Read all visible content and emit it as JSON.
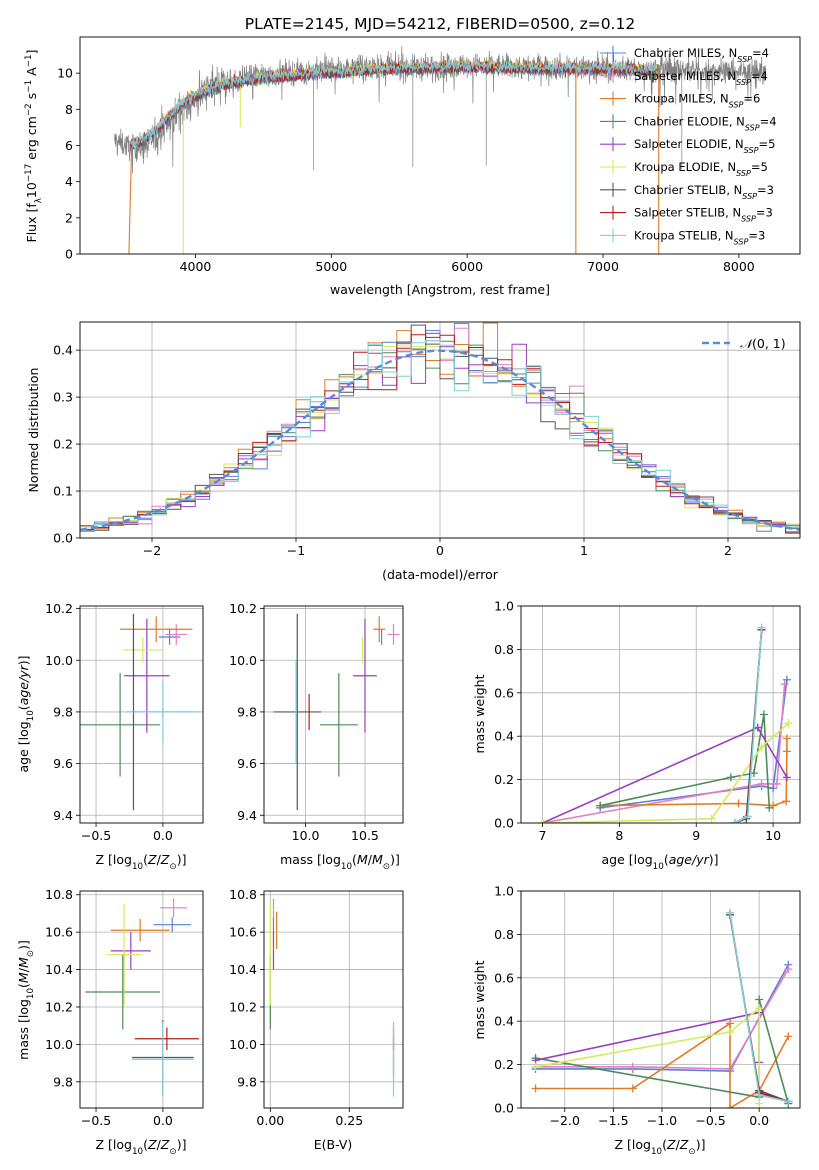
{
  "figure": {
    "title": "PLATE=2145, MJD=54212, FIBERID=0500, z=0.12",
    "colors": {
      "Chabrier MILES": "#5b7fd8",
      "Salpeter MILES": "#e57fbf",
      "Kroupa MILES": "#e07b2a",
      "Chabrier ELODIE": "#4f8a5a",
      "Salpeter ELODIE": "#9a3fbf",
      "Kroupa ELODIE": "#d4ea5a",
      "Chabrier STELIB": "#555555",
      "Salpeter STELIB": "#b81c1c",
      "Kroupa STELIB": "#7fcfdc",
      "grid": "#b0b0b0"
    }
  },
  "chart_data": [
    {
      "id": "spectrum",
      "type": "line",
      "xlabel": "wavelength [Angstrom, rest frame]",
      "ylabel": "Flux [f_λ10^-17 erg cm^-2 s^-1 A^-1]",
      "xlim": [
        3150,
        8450
      ],
      "ylim": [
        0,
        12
      ],
      "xticks": [
        4000,
        5000,
        6000,
        7000,
        8000
      ],
      "yticks": [
        0,
        2,
        4,
        6,
        8,
        10
      ],
      "grid": false,
      "legend_position": "right",
      "data_continuum": [
        [
          3400,
          6.3
        ],
        [
          3550,
          5.8
        ],
        [
          3650,
          6.0
        ],
        [
          3750,
          6.9
        ],
        [
          3850,
          7.6
        ],
        [
          3950,
          8.3
        ],
        [
          4100,
          9.1
        ],
        [
          4300,
          9.6
        ],
        [
          4500,
          9.9
        ],
        [
          4800,
          10.1
        ],
        [
          5200,
          10.3
        ],
        [
          5600,
          10.3
        ],
        [
          6000,
          10.4
        ],
        [
          6500,
          10.35
        ],
        [
          7000,
          10.3
        ],
        [
          7500,
          10.2
        ],
        [
          8000,
          10.1
        ],
        [
          8200,
          10.0
        ]
      ],
      "model_rise": [
        [
          3520,
          6.0
        ],
        [
          3600,
          6.2
        ],
        [
          3700,
          6.7
        ],
        [
          3800,
          7.5
        ],
        [
          3900,
          8.2
        ],
        [
          4000,
          8.7
        ],
        [
          4200,
          9.3
        ],
        [
          4500,
          9.7
        ],
        [
          5000,
          10.0
        ],
        [
          5500,
          10.2
        ],
        [
          6000,
          10.3
        ],
        [
          6500,
          10.2
        ],
        [
          7000,
          10.2
        ],
        [
          7400,
          10.1
        ]
      ],
      "series": [
        {
          "name": "Chabrier MILES",
          "n_ssp": "4"
        },
        {
          "name": "Salpeter MILES",
          "n_ssp": "4"
        },
        {
          "name": "Kroupa MILES",
          "n_ssp": "6"
        },
        {
          "name": "Chabrier ELODIE",
          "n_ssp": "4"
        },
        {
          "name": "Salpeter ELODIE",
          "n_ssp": "5"
        },
        {
          "name": "Kroupa ELODIE",
          "n_ssp": "5"
        },
        {
          "name": "Chabrier STELIB",
          "n_ssp": "3"
        },
        {
          "name": "Salpeter STELIB",
          "n_ssp": "3"
        },
        {
          "name": "Kroupa STELIB",
          "n_ssp": "3"
        }
      ]
    },
    {
      "id": "residual-histogram",
      "type": "line",
      "xlabel": "(data-model)/error",
      "ylabel": "Normed distribution",
      "xlim": [
        -2.5,
        2.5
      ],
      "ylim": [
        0,
        0.46
      ],
      "xticks": [
        -2,
        -1,
        0,
        1,
        2
      ],
      "yticks": [
        0.0,
        0.1,
        0.2,
        0.3,
        0.4
      ],
      "grid": true,
      "legend_label": "N(0,1)",
      "legend_position": "top-right",
      "bin_width": 0.1,
      "bin_start": -2.5
    },
    {
      "id": "age-vs-Z",
      "type": "scatter",
      "xlabel": "Z [log10(Z/Z⊙)]",
      "ylabel": "age [log10(age/yr)]",
      "xlim": [
        -0.62,
        0.3
      ],
      "ylim": [
        9.37,
        10.21
      ],
      "xticks": [
        -0.5,
        0.0
      ],
      "yticks": [
        9.4,
        9.6,
        9.8,
        10.0,
        10.2
      ],
      "grid": true,
      "points": [
        {
          "series": "Chabrier MILES",
          "x": 0.05,
          "xerr": 0.08,
          "y": 10.09,
          "yerr": 0.03
        },
        {
          "series": "Salpeter MILES",
          "x": 0.1,
          "xerr": 0.08,
          "y": 10.1,
          "yerr": 0.04
        },
        {
          "series": "Kroupa MILES",
          "x": -0.05,
          "xerr": 0.27,
          "y": 10.12,
          "yerr": 0.05
        },
        {
          "series": "Chabrier ELODIE",
          "x": -0.32,
          "xerr": 0.3,
          "y": 9.75,
          "yerr": 0.2
        },
        {
          "series": "Salpeter ELODIE",
          "x": -0.12,
          "xerr": 0.17,
          "y": 9.94,
          "yerr": 0.22
        },
        {
          "series": "Kroupa ELODIE",
          "x": -0.15,
          "xerr": 0.15,
          "y": 10.04,
          "yerr": 0.05
        },
        {
          "series": "Chabrier STELIB",
          "x": -0.22,
          "xerr": 0.01,
          "y": 9.8,
          "yerr": 0.38
        },
        {
          "series": "Salpeter STELIB",
          "x": 0.0,
          "xerr": 0.27,
          "y": 9.8,
          "yerr": 0.01
        },
        {
          "series": "Kroupa STELIB",
          "x": 0.0,
          "xerr": 0.28,
          "y": 9.8,
          "yerr": 0.12
        }
      ]
    },
    {
      "id": "age-vs-mass",
      "type": "scatter",
      "xlabel": "mass [log10(M/M⊙)]",
      "ylabel": "",
      "xlim": [
        9.65,
        10.82
      ],
      "ylim": [
        9.37,
        10.21
      ],
      "xticks": [
        10.0,
        10.5
      ],
      "yticks": [
        9.4,
        9.6,
        9.8,
        10.0,
        10.2
      ],
      "grid": true,
      "points": [
        {
          "series": "Chabrier MILES",
          "x": 10.64,
          "xerr": 0.0,
          "y": 10.09,
          "yerr": 0.03
        },
        {
          "series": "Salpeter MILES",
          "x": 10.74,
          "xerr": 0.05,
          "y": 10.1,
          "yerr": 0.04
        },
        {
          "series": "Kroupa MILES",
          "x": 10.62,
          "xerr": 0.05,
          "y": 10.12,
          "yerr": 0.05
        },
        {
          "series": "Chabrier ELODIE",
          "x": 10.28,
          "xerr": 0.16,
          "y": 9.75,
          "yerr": 0.2
        },
        {
          "series": "Salpeter ELODIE",
          "x": 10.5,
          "xerr": 0.1,
          "y": 9.94,
          "yerr": 0.22
        },
        {
          "series": "Kroupa ELODIE",
          "x": 10.48,
          "xerr": 0.0,
          "y": 10.04,
          "yerr": 0.05
        },
        {
          "series": "Chabrier STELIB",
          "x": 9.93,
          "xerr": 0.2,
          "y": 9.8,
          "yerr": 0.38
        },
        {
          "series": "Salpeter STELIB",
          "x": 10.03,
          "xerr": 0.0,
          "y": 9.8,
          "yerr": 0.07
        },
        {
          "series": "Kroupa STELIB",
          "x": 9.92,
          "xerr": 0.0,
          "y": 9.8,
          "yerr": 0.2
        }
      ]
    },
    {
      "id": "weight-vs-age",
      "type": "line",
      "xlabel": "age [log10(age/yr)]",
      "ylabel": "mass weight",
      "xlim": [
        6.72,
        10.35
      ],
      "ylim": [
        0,
        1.0
      ],
      "xticks": [
        7,
        8,
        9,
        10
      ],
      "yticks": [
        0.0,
        0.2,
        0.4,
        0.6,
        0.8,
        1.0
      ],
      "grid": true,
      "series": [
        {
          "name": "Chabrier MILES",
          "points": [
            [
              7.75,
              0.07
            ],
            [
              9.85,
              0.17
            ],
            [
              10.0,
              0.16
            ],
            [
              10.18,
              0.66
            ]
          ]
        },
        {
          "name": "Salpeter MILES",
          "points": [
            [
              7.0,
              0.0
            ],
            [
              9.85,
              0.18
            ],
            [
              10.05,
              0.18
            ],
            [
              10.15,
              0.64
            ]
          ]
        },
        {
          "name": "Kroupa MILES",
          "points": [
            [
              7.75,
              0.08
            ],
            [
              9.55,
              0.09
            ],
            [
              10.0,
              0.08
            ],
            [
              10.17,
              0.1
            ],
            [
              10.18,
              0.33
            ],
            [
              10.18,
              0.39
            ]
          ]
        },
        {
          "name": "Chabrier ELODIE",
          "points": [
            [
              7.75,
              0.08
            ],
            [
              9.45,
              0.21
            ],
            [
              9.75,
              0.23
            ],
            [
              9.88,
              0.5
            ],
            [
              9.95,
              0.07
            ]
          ]
        },
        {
          "name": "Salpeter ELODIE",
          "points": [
            [
              7.0,
              0.0
            ],
            [
              9.8,
              0.44
            ],
            [
              10.18,
              0.21
            ]
          ]
        },
        {
          "name": "Kroupa ELODIE",
          "points": [
            [
              7.0,
              0.0
            ],
            [
              9.2,
              0.02
            ],
            [
              9.85,
              0.35
            ],
            [
              10.2,
              0.46
            ]
          ]
        },
        {
          "name": "Chabrier STELIB",
          "points": [
            [
              9.5,
              0.0
            ],
            [
              9.65,
              0.02
            ],
            [
              9.85,
              0.89
            ]
          ]
        },
        {
          "name": "Salpeter STELIB",
          "points": [
            [
              9.5,
              0.0
            ],
            [
              9.66,
              0.03
            ],
            [
              9.85,
              0.89
            ]
          ]
        },
        {
          "name": "Kroupa STELIB",
          "points": [
            [
              9.5,
              0.0
            ],
            [
              9.67,
              0.03
            ],
            [
              9.85,
              0.9
            ]
          ]
        }
      ]
    },
    {
      "id": "mass-vs-Z",
      "type": "scatter",
      "xlabel": "Z [log10(Z/Z⊙)]",
      "ylabel": "mass [log10(M/M⊙)]",
      "xlim": [
        -0.62,
        0.3
      ],
      "ylim": [
        9.66,
        10.82
      ],
      "xticks": [
        -0.5,
        0.0
      ],
      "yticks": [
        9.8,
        10.0,
        10.2,
        10.4,
        10.6,
        10.8
      ],
      "grid": true,
      "points": [
        {
          "series": "Chabrier MILES",
          "x": 0.07,
          "xerr": 0.14,
          "y": 10.64,
          "yerr": 0.04
        },
        {
          "series": "Salpeter MILES",
          "x": 0.08,
          "xerr": 0.1,
          "y": 10.73,
          "yerr": 0.05
        },
        {
          "series": "Kroupa MILES",
          "x": -0.17,
          "xerr": 0.22,
          "y": 10.61,
          "yerr": 0.06
        },
        {
          "series": "Chabrier ELODIE",
          "x": -0.3,
          "xerr": 0.28,
          "y": 10.28,
          "yerr": 0.2
        },
        {
          "series": "Salpeter ELODIE",
          "x": -0.24,
          "xerr": 0.15,
          "y": 10.5,
          "yerr": 0.1
        },
        {
          "series": "Kroupa ELODIE",
          "x": -0.29,
          "xerr": 0.13,
          "y": 10.48,
          "yerr": 0.27
        },
        {
          "series": "Chabrier STELIB",
          "x": 0.0,
          "xerr": 0.23,
          "y": 9.93,
          "yerr": 0.2
        },
        {
          "series": "Salpeter STELIB",
          "x": 0.03,
          "xerr": 0.24,
          "y": 10.03,
          "yerr": 0.06
        },
        {
          "series": "Kroupa STELIB",
          "x": 0.0,
          "xerr": 0.23,
          "y": 9.92,
          "yerr": 0.2
        }
      ]
    },
    {
      "id": "mass-vs-ebv",
      "type": "scatter",
      "xlabel": "E(B-V)",
      "ylabel": "",
      "xlim": [
        -0.02,
        0.42
      ],
      "ylim": [
        9.66,
        10.82
      ],
      "xticks": [
        0.0,
        0.25
      ],
      "tick_labels": [
        "0.00",
        "0.25"
      ],
      "yticks": [
        9.8,
        10.0,
        10.2,
        10.4,
        10.6,
        10.8
      ],
      "grid": true,
      "points": [
        {
          "series": "Chabrier MILES",
          "x": 0.01,
          "xerr": 0.0,
          "y": 10.64,
          "yerr": 0.04
        },
        {
          "series": "Salpeter MILES",
          "x": 0.01,
          "xerr": 0.0,
          "y": 10.73,
          "yerr": 0.05
        },
        {
          "series": "Kroupa MILES",
          "x": 0.02,
          "xerr": 0.0,
          "y": 10.61,
          "yerr": 0.1
        },
        {
          "series": "Chabrier ELODIE",
          "x": 0.0,
          "xerr": 0.0,
          "y": 10.28,
          "yerr": 0.2
        },
        {
          "series": "Salpeter ELODIE",
          "x": 0.01,
          "xerr": 0.0,
          "y": 10.5,
          "yerr": 0.1
        },
        {
          "series": "Kroupa ELODIE",
          "x": 0.0,
          "xerr": 0.0,
          "y": 10.48,
          "yerr": 0.27
        },
        {
          "series": "Chabrier STELIB",
          "x": 0.39,
          "xerr": 0.0,
          "y": 9.93,
          "yerr": 0.1
        },
        {
          "series": "Salpeter STELIB",
          "x": 0.39,
          "xerr": 0.0,
          "y": 10.03,
          "yerr": 0.06
        },
        {
          "series": "Kroupa STELIB",
          "x": 0.39,
          "xerr": 0.0,
          "y": 9.92,
          "yerr": 0.2
        }
      ]
    },
    {
      "id": "weight-vs-Z",
      "type": "line",
      "xlabel": "Z [log10(Z/Z⊙)]",
      "ylabel": "mass weight",
      "xlim": [
        -2.45,
        0.42
      ],
      "ylim": [
        0,
        1.0
      ],
      "xticks": [
        -2.0,
        -1.5,
        -1.0,
        -0.5,
        0.0
      ],
      "yticks": [
        0.0,
        0.2,
        0.4,
        0.6,
        0.8,
        1.0
      ],
      "grid": true,
      "series": [
        {
          "name": "Chabrier MILES",
          "points": [
            [
              -2.3,
              0.18
            ],
            [
              -1.3,
              0.18
            ],
            [
              -0.3,
              0.17
            ],
            [
              0.3,
              0.66
            ]
          ]
        },
        {
          "name": "Salpeter MILES",
          "points": [
            [
              -2.3,
              0.19
            ],
            [
              -1.3,
              0.19
            ],
            [
              -0.3,
              0.18
            ],
            [
              0.3,
              0.64
            ]
          ]
        },
        {
          "name": "Kroupa MILES",
          "points": [
            [
              -2.3,
              0.09
            ],
            [
              -1.3,
              0.09
            ],
            [
              -0.3,
              0.39
            ],
            [
              -0.3,
              0.0
            ],
            [
              0.0,
              0.08
            ],
            [
              0.3,
              0.33
            ]
          ]
        },
        {
          "name": "Chabrier ELODIE",
          "points": [
            [
              -2.3,
              0.23
            ],
            [
              0.0,
              0.05
            ],
            [
              0.0,
              0.5
            ],
            [
              0.3,
              0.02
            ]
          ]
        },
        {
          "name": "Salpeter ELODIE",
          "points": [
            [
              -2.3,
              0.22
            ],
            [
              0.0,
              0.44
            ],
            [
              0.0,
              0.21
            ]
          ]
        },
        {
          "name": "Kroupa ELODIE",
          "points": [
            [
              -2.3,
              0.19
            ],
            [
              -0.3,
              0.35
            ],
            [
              0.0,
              0.46
            ],
            [
              0.0,
              0.02
            ]
          ]
        },
        {
          "name": "Chabrier STELIB",
          "points": [
            [
              -0.3,
              0.89
            ],
            [
              0.0,
              0.08
            ],
            [
              0.3,
              0.03
            ]
          ]
        },
        {
          "name": "Salpeter STELIB",
          "points": [
            [
              -0.3,
              0.89
            ],
            [
              0.0,
              0.07
            ],
            [
              0.3,
              0.03
            ]
          ]
        },
        {
          "name": "Kroupa STELIB",
          "points": [
            [
              -0.3,
              0.9
            ],
            [
              0.0,
              0.06
            ],
            [
              0.3,
              0.03
            ]
          ]
        }
      ]
    }
  ]
}
